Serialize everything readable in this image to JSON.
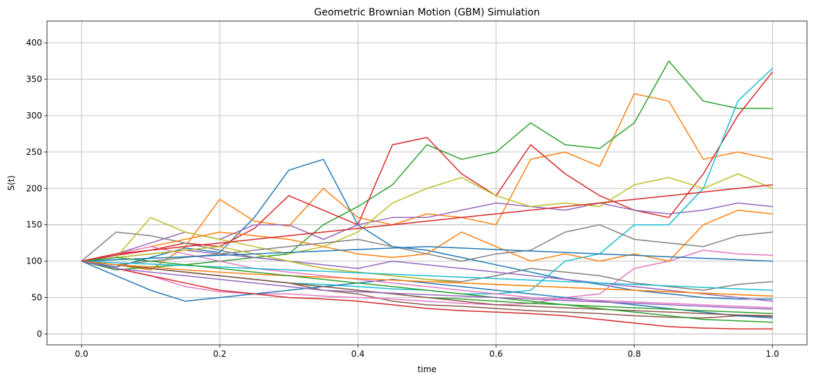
{
  "chart_data": {
    "type": "line",
    "title": "Geometric Brownian Motion (GBM) Simulation",
    "xlabel": "time",
    "ylabel": "S(t)",
    "xlim": [
      -0.05,
      1.05
    ],
    "ylim": [
      -15,
      430
    ],
    "xticks": [
      0.0,
      0.2,
      0.4,
      0.6,
      0.8,
      1.0
    ],
    "xtick_labels": [
      "0.0",
      "0.2",
      "0.4",
      "0.6",
      "0.8",
      "1.0"
    ],
    "yticks": [
      0,
      50,
      100,
      150,
      200,
      250,
      300,
      350,
      400
    ],
    "ytick_labels": [
      "0",
      "50",
      "100",
      "150",
      "200",
      "250",
      "300",
      "350",
      "400"
    ],
    "grid": true,
    "legend": false,
    "colors": [
      "#1f77b4",
      "#ff7f0e",
      "#2ca02c",
      "#d62728",
      "#9467bd",
      "#8c564b",
      "#e377c2",
      "#7f7f7f",
      "#bcbd22",
      "#17becf"
    ],
    "x": [
      0.0,
      0.05,
      0.1,
      0.15,
      0.2,
      0.25,
      0.3,
      0.35,
      0.4,
      0.45,
      0.5,
      0.55,
      0.6,
      0.65,
      0.7,
      0.75,
      0.8,
      0.85,
      0.9,
      0.95,
      1.0
    ],
    "series": [
      {
        "values": [
          100,
          92,
          105,
          118,
          112,
          160,
          225,
          240,
          150,
          120,
          115,
          105,
          95,
          85,
          75,
          68,
          60,
          55,
          50,
          48,
          48
        ]
      },
      {
        "values": [
          100,
          95,
          88,
          120,
          185,
          155,
          148,
          200,
          160,
          150,
          165,
          160,
          150,
          240,
          250,
          230,
          330,
          320,
          240,
          250,
          240
        ]
      },
      {
        "values": [
          100,
          88,
          92,
          95,
          100,
          105,
          110,
          150,
          175,
          205,
          260,
          240,
          250,
          290,
          260,
          255,
          290,
          375,
          320,
          310,
          310
        ]
      },
      {
        "values": [
          100,
          108,
          115,
          125,
          120,
          145,
          190,
          170,
          150,
          260,
          270,
          220,
          190,
          260,
          220,
          190,
          170,
          160,
          220,
          300,
          360
        ]
      },
      {
        "values": [
          100,
          110,
          125,
          140,
          130,
          150,
          150,
          130,
          150,
          160,
          160,
          170,
          180,
          175,
          170,
          180,
          170,
          165,
          170,
          180,
          175
        ]
      },
      {
        "values": [
          100,
          95,
          90,
          85,
          80,
          75,
          70,
          60,
          55,
          45,
          40,
          38,
          35,
          32,
          30,
          28,
          25,
          23,
          22,
          25,
          24
        ]
      },
      {
        "values": [
          100,
          90,
          80,
          65,
          58,
          55,
          55,
          52,
          50,
          48,
          45,
          42,
          40,
          42,
          50,
          55,
          90,
          100,
          115,
          110,
          108
        ]
      },
      {
        "values": [
          100,
          140,
          135,
          125,
          115,
          105,
          100,
          90,
          85,
          80,
          75,
          72,
          80,
          90,
          85,
          80,
          70,
          65,
          60,
          68,
          72
        ]
      },
      {
        "values": [
          100,
          105,
          160,
          140,
          130,
          120,
          110,
          120,
          140,
          180,
          200,
          215,
          190,
          175,
          180,
          175,
          205,
          215,
          200,
          220,
          200
        ]
      },
      {
        "values": [
          100,
          95,
          90,
          85,
          80,
          75,
          70,
          68,
          65,
          62,
          60,
          55,
          55,
          60,
          100,
          110,
          150,
          150,
          200,
          320,
          365
        ]
      },
      {
        "values": [
          100,
          80,
          60,
          45,
          50,
          55,
          60,
          65,
          70,
          75,
          70,
          65,
          60,
          55,
          50,
          45,
          40,
          35,
          30,
          25,
          22
        ]
      },
      {
        "values": [
          100,
          110,
          120,
          130,
          140,
          135,
          130,
          120,
          110,
          105,
          110,
          140,
          120,
          100,
          110,
          100,
          110,
          100,
          150,
          170,
          165
        ]
      },
      {
        "values": [
          100,
          95,
          90,
          85,
          80,
          75,
          70,
          65,
          60,
          55,
          50,
          48,
          45,
          42,
          40,
          38,
          36,
          34,
          32,
          30,
          28
        ]
      },
      {
        "values": [
          100,
          90,
          80,
          70,
          60,
          55,
          50,
          48,
          45,
          40,
          35,
          32,
          30,
          28,
          25,
          20,
          15,
          10,
          8,
          7,
          7
        ]
      },
      {
        "values": [
          100,
          105,
          110,
          115,
          110,
          105,
          100,
          95,
          90,
          100,
          95,
          90,
          85,
          80,
          75,
          70,
          65,
          60,
          55,
          50,
          45
        ]
      },
      {
        "values": [
          100,
          95,
          90,
          85,
          80,
          75,
          70,
          65,
          60,
          55,
          50,
          45,
          40,
          38,
          36,
          34,
          32,
          30,
          28,
          26,
          25
        ]
      },
      {
        "values": [
          100,
          110,
          120,
          110,
          100,
          90,
          85,
          80,
          75,
          70,
          65,
          60,
          55,
          50,
          48,
          46,
          44,
          42,
          40,
          38,
          36
        ]
      },
      {
        "values": [
          100,
          95,
          100,
          105,
          110,
          115,
          120,
          125,
          130,
          120,
          110,
          100,
          110,
          115,
          140,
          150,
          130,
          125,
          120,
          135,
          140
        ]
      },
      {
        "values": [
          100,
          105,
          110,
          115,
          120,
          110,
          100,
          90,
          85,
          80,
          75,
          70,
          68,
          66,
          64,
          62,
          60,
          58,
          56,
          54,
          52
        ]
      },
      {
        "values": [
          100,
          98,
          96,
          94,
          92,
          90,
          88,
          86,
          84,
          82,
          80,
          78,
          76,
          74,
          72,
          70,
          68,
          66,
          64,
          62,
          60
        ]
      },
      {
        "values": [
          100,
          102,
          104,
          106,
          108,
          110,
          112,
          114,
          116,
          118,
          120,
          118,
          116,
          114,
          112,
          110,
          108,
          106,
          104,
          102,
          100
        ]
      },
      {
        "values": [
          100,
          95,
          92,
          88,
          85,
          82,
          80,
          78,
          76,
          74,
          72,
          70,
          68,
          66,
          64,
          62,
          60,
          58,
          56,
          54,
          52
        ]
      },
      {
        "values": [
          100,
          105,
          100,
          95,
          90,
          85,
          80,
          75,
          70,
          65,
          60,
          55,
          50,
          45,
          40,
          35,
          30,
          25,
          20,
          18,
          16
        ]
      },
      {
        "values": [
          100,
          110,
          115,
          120,
          125,
          130,
          135,
          140,
          145,
          150,
          155,
          160,
          165,
          170,
          175,
          180,
          185,
          190,
          195,
          200,
          205
        ]
      },
      {
        "values": [
          100,
          90,
          85,
          80,
          75,
          70,
          65,
          60,
          58,
          56,
          54,
          52,
          50,
          48,
          46,
          44,
          42,
          40,
          38,
          36,
          34
        ]
      }
    ]
  }
}
